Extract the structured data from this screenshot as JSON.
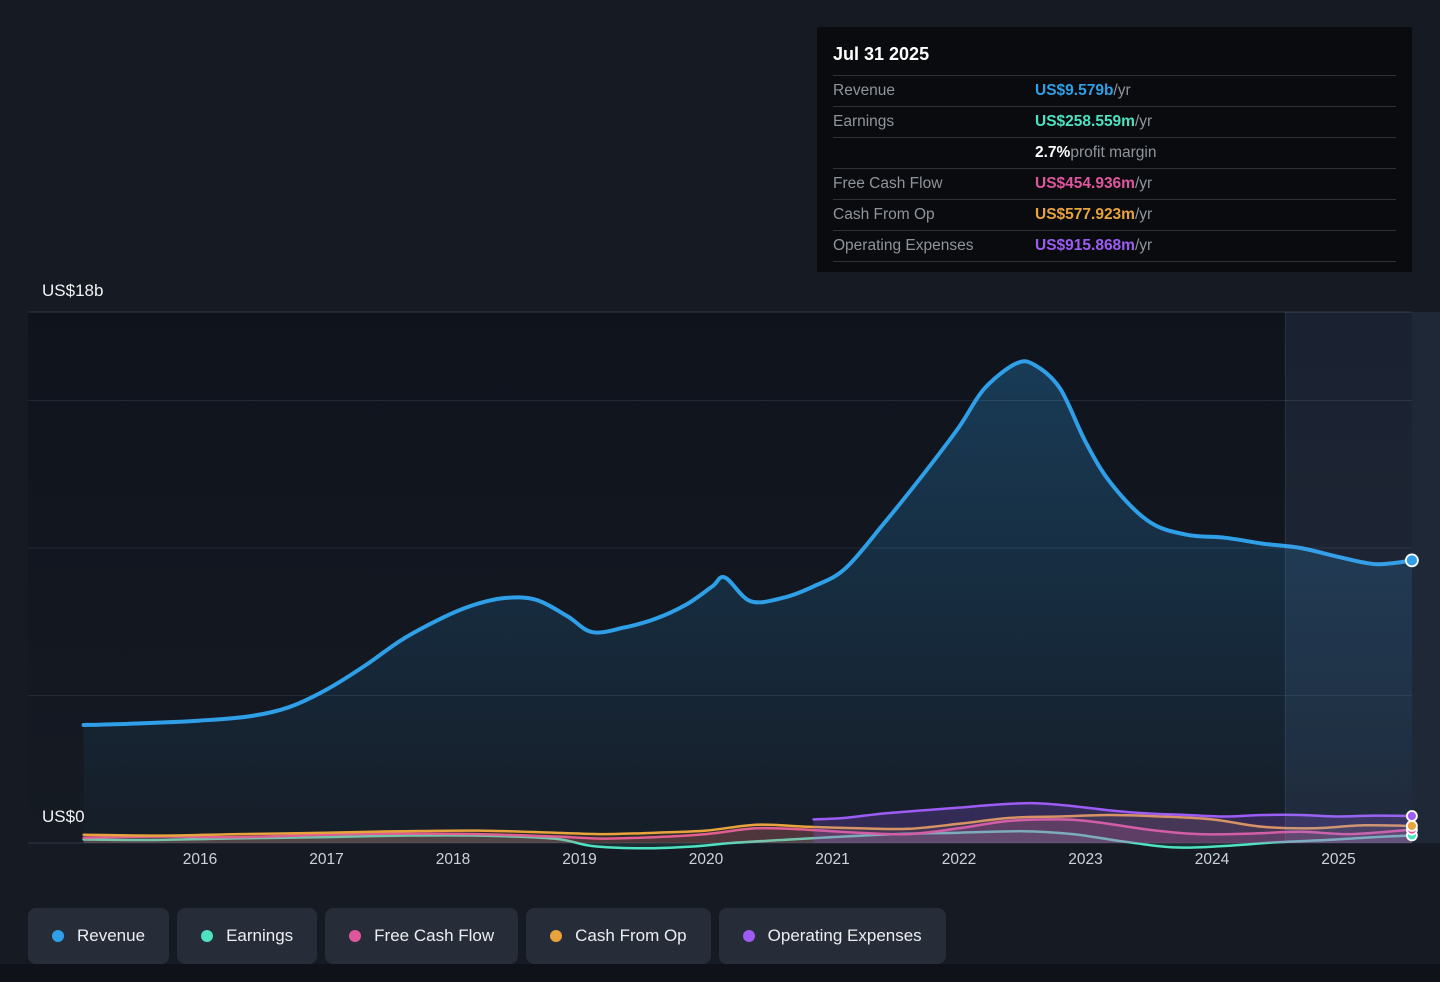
{
  "tooltip": {
    "date": "Jul 31 2025",
    "rows": [
      {
        "label": "Revenue",
        "value": "US$9.579b",
        "suffix": " /yr",
        "color": "#2f9fe8"
      },
      {
        "label": "Earnings",
        "value": "US$258.559m",
        "suffix": " /yr",
        "color": "#4ee1c2"
      },
      {
        "label": "",
        "value": "2.7%",
        "suffix": " profit margin",
        "color": "#ffffff"
      },
      {
        "label": "Free Cash Flow",
        "value": "US$454.936m",
        "suffix": " /yr",
        "color": "#e0569e"
      },
      {
        "label": "Cash From Op",
        "value": "US$577.923m",
        "suffix": " /yr",
        "color": "#e8a33d"
      },
      {
        "label": "Operating Expenses",
        "value": "US$915.868m",
        "suffix": " /yr",
        "color": "#9d5cf5"
      }
    ]
  },
  "axis": {
    "y_top_label": "US$18b",
    "y_zero_label": "US$0",
    "x_ticks": [
      "2016",
      "2017",
      "2018",
      "2019",
      "2020",
      "2021",
      "2022",
      "2023",
      "2024",
      "2025"
    ]
  },
  "legend": [
    {
      "label": "Revenue",
      "color": "#2f9fe8"
    },
    {
      "label": "Earnings",
      "color": "#4ee1c2"
    },
    {
      "label": "Free Cash Flow",
      "color": "#e0569e"
    },
    {
      "label": "Cash From Op",
      "color": "#e8a33d"
    },
    {
      "label": "Operating Expenses",
      "color": "#9d5cf5"
    }
  ],
  "chart_data": {
    "type": "area",
    "title": "Revenue & Expenses History",
    "units": "USD billions per year",
    "x_range": [
      2015.08,
      2025.58
    ],
    "ylim": [
      0,
      18
    ],
    "y_gridlines": [
      0,
      5,
      10,
      15,
      18
    ],
    "grid": true,
    "legend_position": "bottom",
    "highlight_start_year": 2024.58,
    "series": [
      {
        "name": "Revenue",
        "color": "#2f9fe8",
        "fill": "gradient",
        "points": [
          [
            2015.08,
            4.0
          ],
          [
            2015.5,
            4.05
          ],
          [
            2016,
            4.15
          ],
          [
            2016.4,
            4.3
          ],
          [
            2016.7,
            4.6
          ],
          [
            2017,
            5.2
          ],
          [
            2017.3,
            6.0
          ],
          [
            2017.6,
            6.9
          ],
          [
            2017.9,
            7.6
          ],
          [
            2018.15,
            8.05
          ],
          [
            2018.4,
            8.3
          ],
          [
            2018.65,
            8.25
          ],
          [
            2018.9,
            7.7
          ],
          [
            2019.1,
            7.15
          ],
          [
            2019.35,
            7.3
          ],
          [
            2019.6,
            7.6
          ],
          [
            2019.85,
            8.1
          ],
          [
            2020.05,
            8.7
          ],
          [
            2020.15,
            9.0
          ],
          [
            2020.35,
            8.2
          ],
          [
            2020.6,
            8.3
          ],
          [
            2020.85,
            8.7
          ],
          [
            2021.1,
            9.3
          ],
          [
            2021.4,
            10.8
          ],
          [
            2021.7,
            12.4
          ],
          [
            2022.0,
            14.1
          ],
          [
            2022.2,
            15.4
          ],
          [
            2022.45,
            16.25
          ],
          [
            2022.6,
            16.2
          ],
          [
            2022.8,
            15.4
          ],
          [
            2023.0,
            13.6
          ],
          [
            2023.2,
            12.2
          ],
          [
            2023.5,
            10.9
          ],
          [
            2023.8,
            10.45
          ],
          [
            2024.1,
            10.35
          ],
          [
            2024.4,
            10.15
          ],
          [
            2024.7,
            10.0
          ],
          [
            2025.0,
            9.7
          ],
          [
            2025.3,
            9.45
          ],
          [
            2025.58,
            9.579
          ]
        ]
      },
      {
        "name": "Earnings",
        "color": "#4ee1c2",
        "fill_opacity": 0.1,
        "points": [
          [
            2015.08,
            0.12
          ],
          [
            2015.6,
            0.1
          ],
          [
            2016.2,
            0.15
          ],
          [
            2017,
            0.2
          ],
          [
            2017.6,
            0.25
          ],
          [
            2018.2,
            0.25
          ],
          [
            2018.8,
            0.15
          ],
          [
            2019.1,
            -0.1
          ],
          [
            2019.5,
            -0.18
          ],
          [
            2019.9,
            -0.12
          ],
          [
            2020.2,
            0.0
          ],
          [
            2020.6,
            0.1
          ],
          [
            2021,
            0.2
          ],
          [
            2021.5,
            0.3
          ],
          [
            2022,
            0.35
          ],
          [
            2022.5,
            0.4
          ],
          [
            2022.9,
            0.3
          ],
          [
            2023.3,
            0.05
          ],
          [
            2023.7,
            -0.15
          ],
          [
            2024.1,
            -0.1
          ],
          [
            2024.5,
            0.02
          ],
          [
            2024.9,
            0.1
          ],
          [
            2025.2,
            0.18
          ],
          [
            2025.58,
            0.259
          ]
        ]
      },
      {
        "name": "Free Cash Flow",
        "color": "#e0569e",
        "fill_opacity": 0.18,
        "points": [
          [
            2015.08,
            0.18
          ],
          [
            2015.7,
            0.22
          ],
          [
            2016.3,
            0.2
          ],
          [
            2017,
            0.28
          ],
          [
            2017.6,
            0.32
          ],
          [
            2018.2,
            0.3
          ],
          [
            2018.8,
            0.22
          ],
          [
            2019.2,
            0.15
          ],
          [
            2019.6,
            0.2
          ],
          [
            2020,
            0.3
          ],
          [
            2020.4,
            0.5
          ],
          [
            2020.8,
            0.45
          ],
          [
            2021.2,
            0.35
          ],
          [
            2021.6,
            0.3
          ],
          [
            2022,
            0.5
          ],
          [
            2022.4,
            0.75
          ],
          [
            2022.8,
            0.8
          ],
          [
            2023.1,
            0.7
          ],
          [
            2023.5,
            0.45
          ],
          [
            2023.9,
            0.3
          ],
          [
            2024.3,
            0.32
          ],
          [
            2024.7,
            0.38
          ],
          [
            2025.1,
            0.3
          ],
          [
            2025.58,
            0.455
          ]
        ]
      },
      {
        "name": "Cash From Op",
        "color": "#e8a33d",
        "fill_opacity": 0.12,
        "points": [
          [
            2015.08,
            0.28
          ],
          [
            2015.7,
            0.25
          ],
          [
            2016.3,
            0.3
          ],
          [
            2017,
            0.35
          ],
          [
            2017.6,
            0.4
          ],
          [
            2018.2,
            0.42
          ],
          [
            2018.8,
            0.35
          ],
          [
            2019.2,
            0.3
          ],
          [
            2019.6,
            0.35
          ],
          [
            2020,
            0.42
          ],
          [
            2020.4,
            0.62
          ],
          [
            2020.8,
            0.55
          ],
          [
            2021.2,
            0.5
          ],
          [
            2021.6,
            0.48
          ],
          [
            2022,
            0.65
          ],
          [
            2022.4,
            0.85
          ],
          [
            2022.8,
            0.9
          ],
          [
            2023.2,
            0.95
          ],
          [
            2023.6,
            0.9
          ],
          [
            2024,
            0.8
          ],
          [
            2024.4,
            0.55
          ],
          [
            2024.8,
            0.5
          ],
          [
            2025.2,
            0.6
          ],
          [
            2025.58,
            0.578
          ]
        ]
      },
      {
        "name": "Operating Expenses",
        "color": "#9d5cf5",
        "fill_opacity": 0.22,
        "points": [
          [
            2020.85,
            0.8
          ],
          [
            2021.1,
            0.85
          ],
          [
            2021.4,
            1.0
          ],
          [
            2021.7,
            1.1
          ],
          [
            2022,
            1.2
          ],
          [
            2022.3,
            1.3
          ],
          [
            2022.6,
            1.35
          ],
          [
            2022.9,
            1.25
          ],
          [
            2023.2,
            1.1
          ],
          [
            2023.5,
            1.0
          ],
          [
            2023.8,
            0.95
          ],
          [
            2024.1,
            0.9
          ],
          [
            2024.4,
            0.95
          ],
          [
            2024.7,
            0.95
          ],
          [
            2025,
            0.9
          ],
          [
            2025.3,
            0.93
          ],
          [
            2025.58,
            0.916
          ]
        ]
      }
    ]
  }
}
